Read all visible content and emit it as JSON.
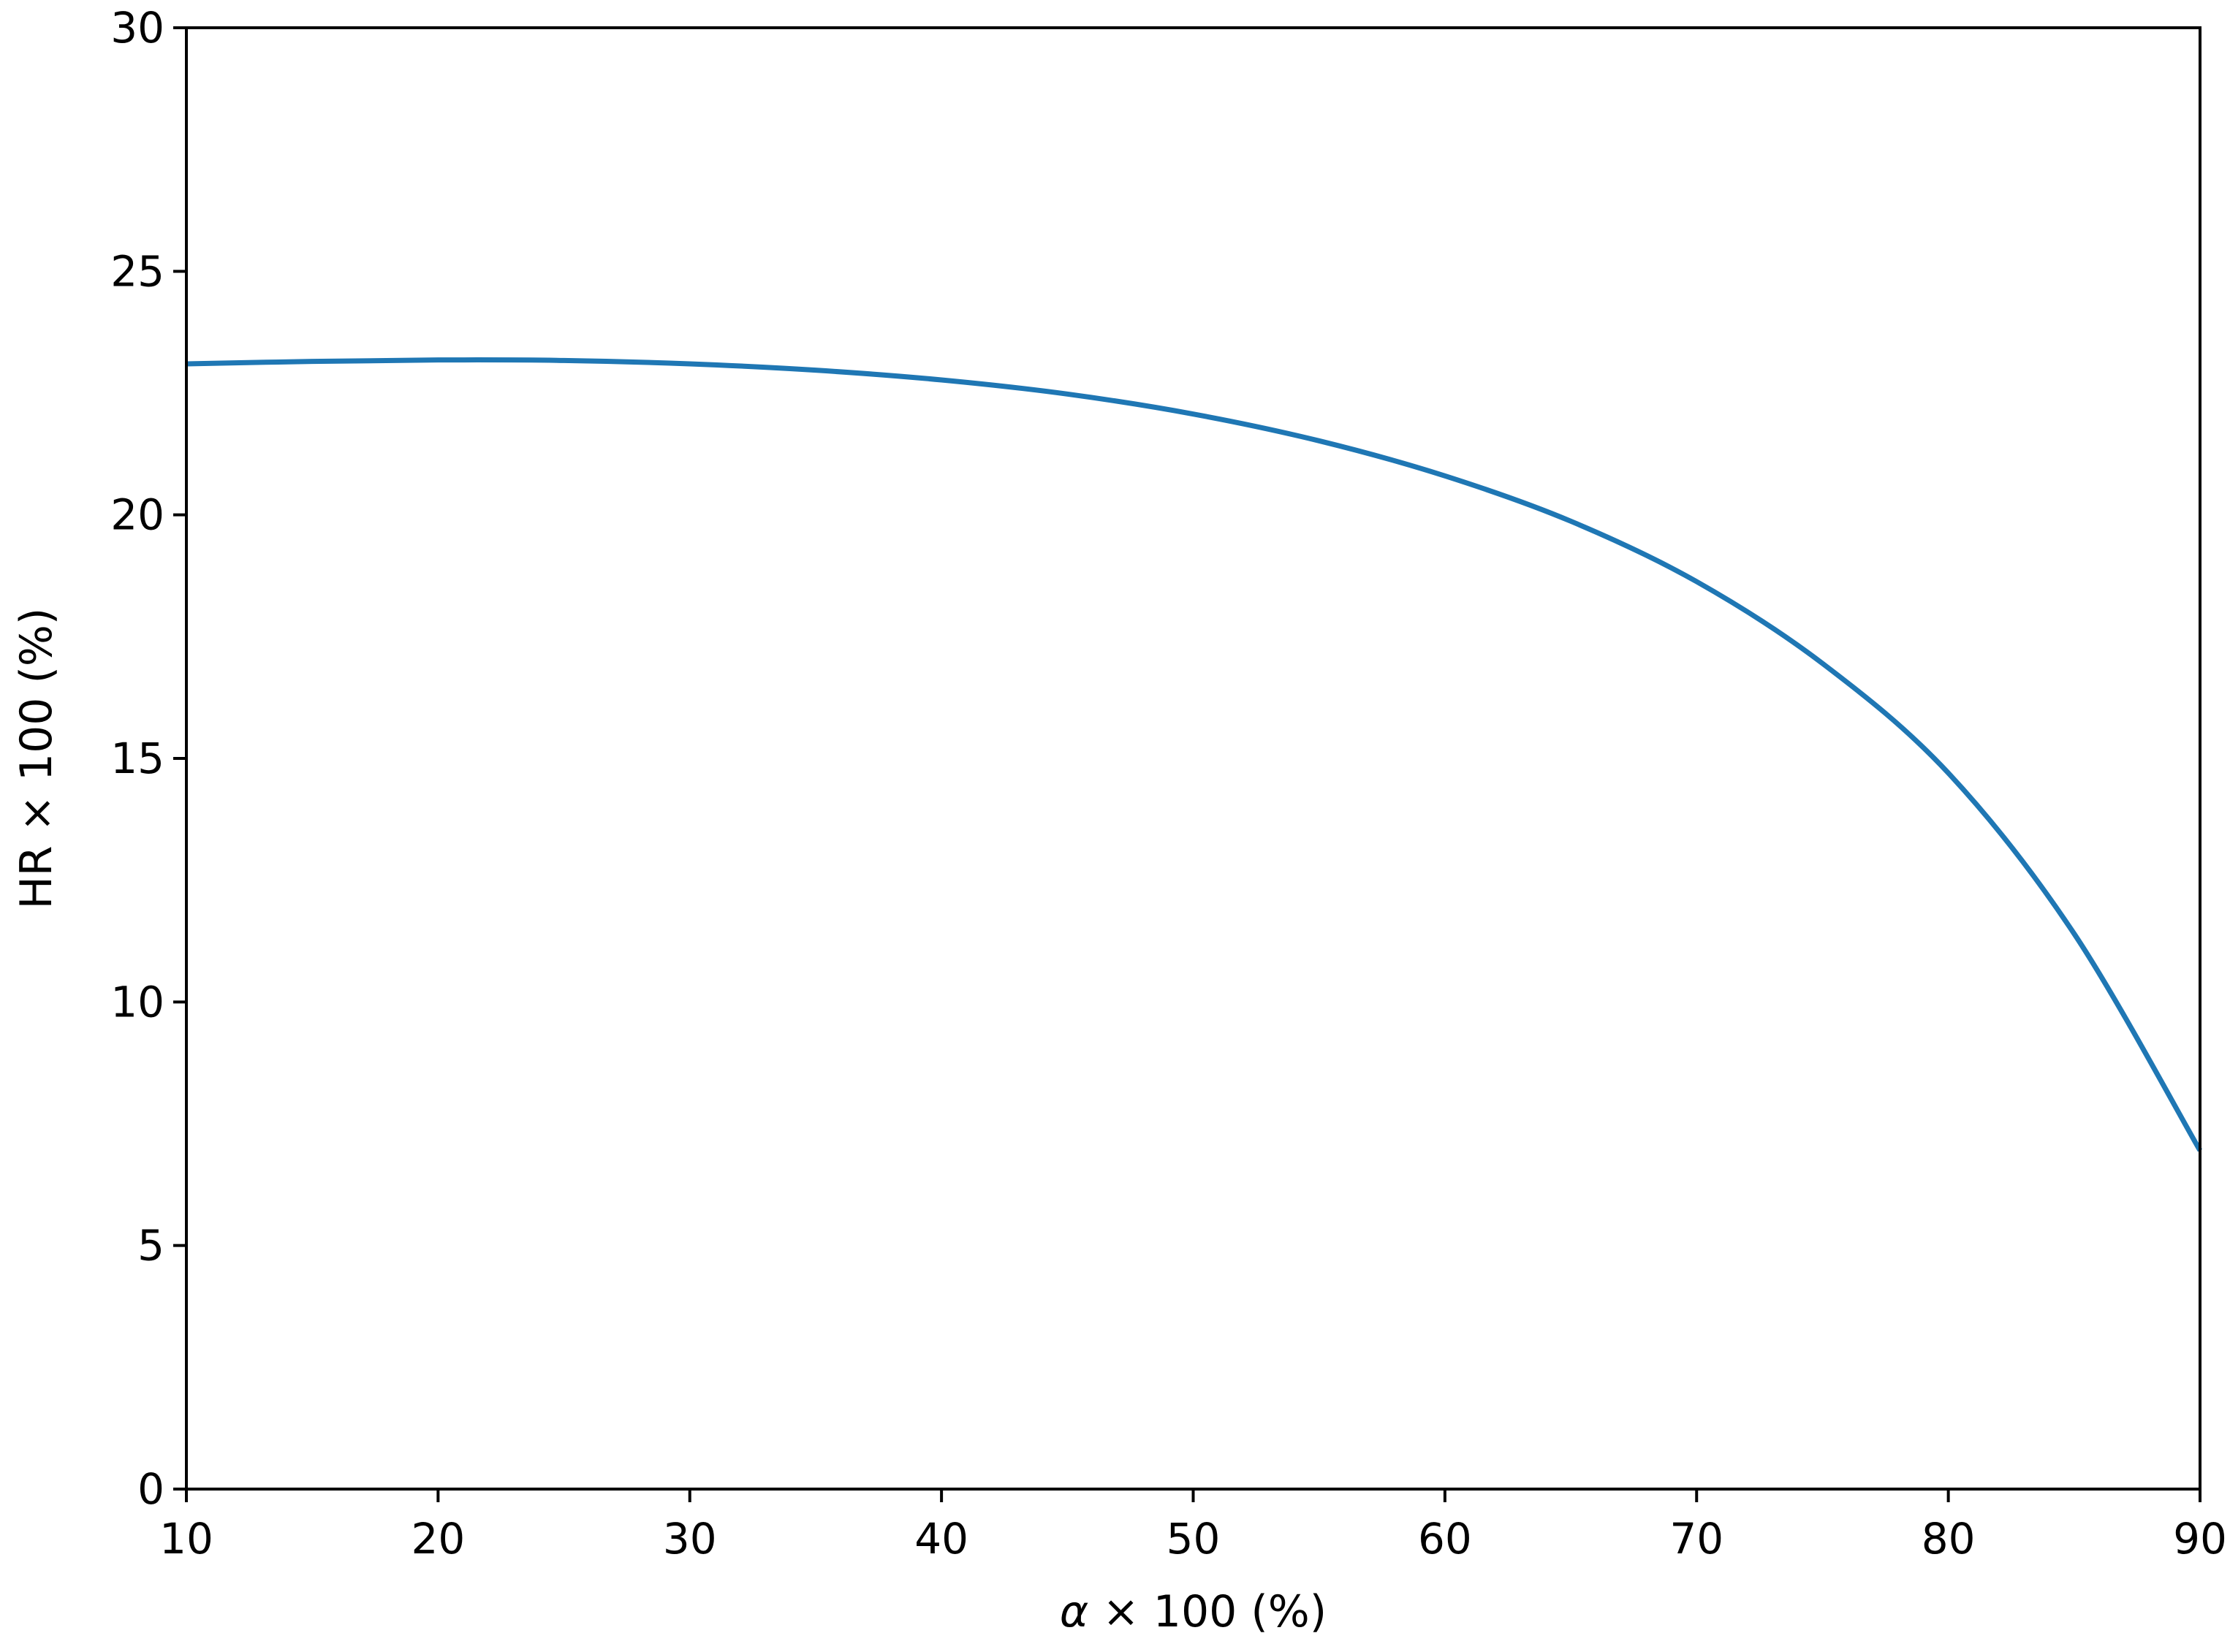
{
  "chart_data": {
    "type": "line",
    "title": "",
    "xlabel_symbol": "α",
    "xlabel_rest": "× 100 (%)",
    "ylabel": "HR × 100 (%)",
    "xlim": [
      10,
      90
    ],
    "ylim": [
      0,
      30
    ],
    "xticks": [
      10,
      20,
      30,
      40,
      50,
      60,
      70,
      80,
      90
    ],
    "yticks": [
      0,
      5,
      10,
      15,
      20,
      25,
      30
    ],
    "xtick_labels": [
      "10",
      "20",
      "30",
      "40",
      "50",
      "60",
      "70",
      "80",
      "90"
    ],
    "ytick_labels": [
      "0",
      "5",
      "10",
      "15",
      "20",
      "25",
      "30"
    ],
    "grid": false,
    "legend": "none",
    "series": [
      {
        "color": "#1f77b4",
        "x": [
          10,
          15,
          20,
          25,
          30,
          35,
          40,
          45,
          50,
          55,
          60,
          65,
          70,
          75,
          80,
          85,
          90
        ],
        "y": [
          23.1,
          23.15,
          23.18,
          23.17,
          23.1,
          22.97,
          22.77,
          22.48,
          22.07,
          21.52,
          20.8,
          19.87,
          18.63,
          16.95,
          14.7,
          11.4,
          6.95
        ]
      }
    ]
  }
}
